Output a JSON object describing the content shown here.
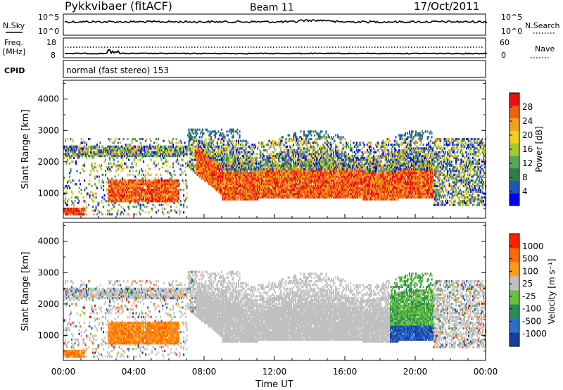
{
  "header": {
    "station": "Pykkvibaer (fitACF)",
    "beam": "Beam 11",
    "date": "17/Oct/2011"
  },
  "strip": {
    "left_labels": {
      "nsky": "N.Sky",
      "freq_top": "Freq.",
      "freq_unit": "[MHz]",
      "cpid": "CPID"
    },
    "right_labels": {
      "nsearch": "N.Search",
      "nave": "Nave"
    },
    "noise_ticks_left": [
      "10^5",
      "10^0"
    ],
    "noise_ticks_right": [
      "10^5",
      "10^0"
    ],
    "freq_ticks": [
      "18",
      "8"
    ],
    "nave_ticks": [
      "60",
      "0"
    ],
    "cpid_text": "normal (fast stereo) 153"
  },
  "chart_data": [
    {
      "type": "heatmap",
      "name": "power",
      "ylabel": "Slant Range [km]",
      "xlabel": "",
      "xlim": [
        0,
        24
      ],
      "ylim": [
        200,
        4600
      ],
      "yticks": [
        "4000",
        "3000",
        "2000",
        "1000"
      ],
      "ytick_values": [
        4000,
        3000,
        2000,
        1000
      ],
      "colorbar": {
        "label": "Power [dB]",
        "ticks": [
          "28",
          "24",
          "20",
          "16",
          "12",
          "8",
          "4"
        ],
        "tick_values": [
          28,
          24,
          20,
          16,
          12,
          8,
          4
        ],
        "range": [
          0,
          32
        ],
        "colors": [
          "#0000ff",
          "#2255bb",
          "#2e7d4f",
          "#5aa55a",
          "#a6c832",
          "#f0d020",
          "#f4a020",
          "#f06010",
          "#e81010"
        ]
      }
    },
    {
      "type": "heatmap",
      "name": "velocity",
      "ylabel": "Slant Range [km]",
      "xlabel": "Time UT",
      "xlim": [
        0,
        24
      ],
      "ylim": [
        200,
        4600
      ],
      "yticks": [
        "4000",
        "3000",
        "2000",
        "1000"
      ],
      "ytick_values": [
        4000,
        3000,
        2000,
        1000
      ],
      "xticks": [
        "00:00",
        "04:00",
        "08:00",
        "12:00",
        "16:00",
        "20:00",
        "00:00"
      ],
      "xtick_values": [
        0,
        4,
        8,
        12,
        16,
        20,
        24
      ],
      "colorbar": {
        "label": "Velocity [m s⁻¹]",
        "ticks": [
          "1000",
          "500",
          "100",
          "25",
          "-25",
          "-100",
          "-500",
          "-1000"
        ],
        "colors": [
          "#1a3ea0",
          "#2a70c8",
          "#2e8b57",
          "#66c23a",
          "#c0c0c0",
          "#ff9a1a",
          "#ff6a00",
          "#ff2000"
        ]
      }
    }
  ]
}
